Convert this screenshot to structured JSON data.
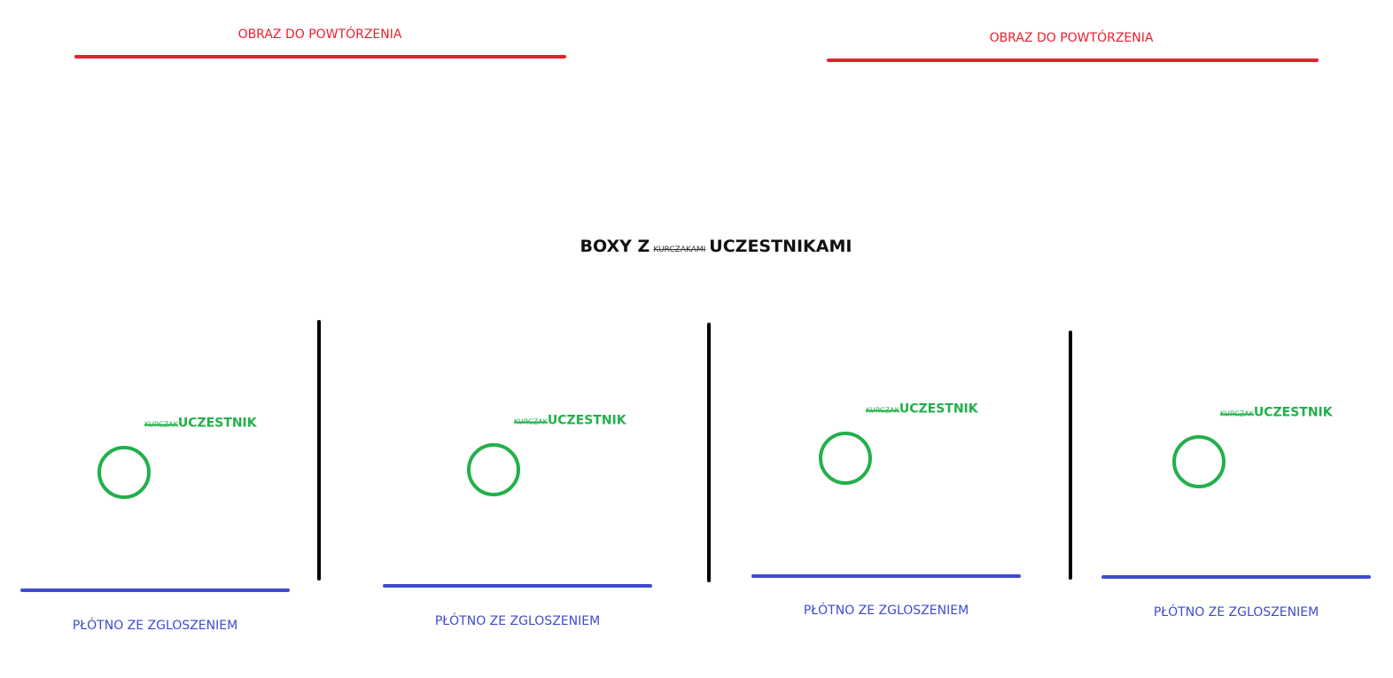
{
  "reference_images": [
    {
      "label": "OBRAZ DO POWTÓRZENIA"
    },
    {
      "label": "OBRAZ DO POWTÓRZENIA"
    }
  ],
  "section_title": {
    "prefix": "BOXY Z",
    "struck": "KURCZAKAMI",
    "suffix": "UCZESTNIKAMI"
  },
  "boxes": [
    {
      "struck": "KURCZAK",
      "label": "UCZESTNIK",
      "canvas_label": "PŁÓTNO ZE ZGLOSZENIEM"
    },
    {
      "struck": "KURCZAK",
      "label": "UCZESTNIK",
      "canvas_label": "PŁÓTNO ZE ZGLOSZENIEM"
    },
    {
      "struck": "KURCZAK",
      "label": "UCZESTNIK",
      "canvas_label": "PŁÓTNO ZE ZGLOSZENIEM"
    },
    {
      "struck": "KURCZAK",
      "label": "UCZESTNIK",
      "canvas_label": "PŁÓTNO ZE ZGLOSZENIEM"
    }
  ],
  "colors": {
    "reference": "#e8202e",
    "participant": "#22b04b",
    "canvas": "#3f4bd0",
    "divider": "#000000"
  }
}
